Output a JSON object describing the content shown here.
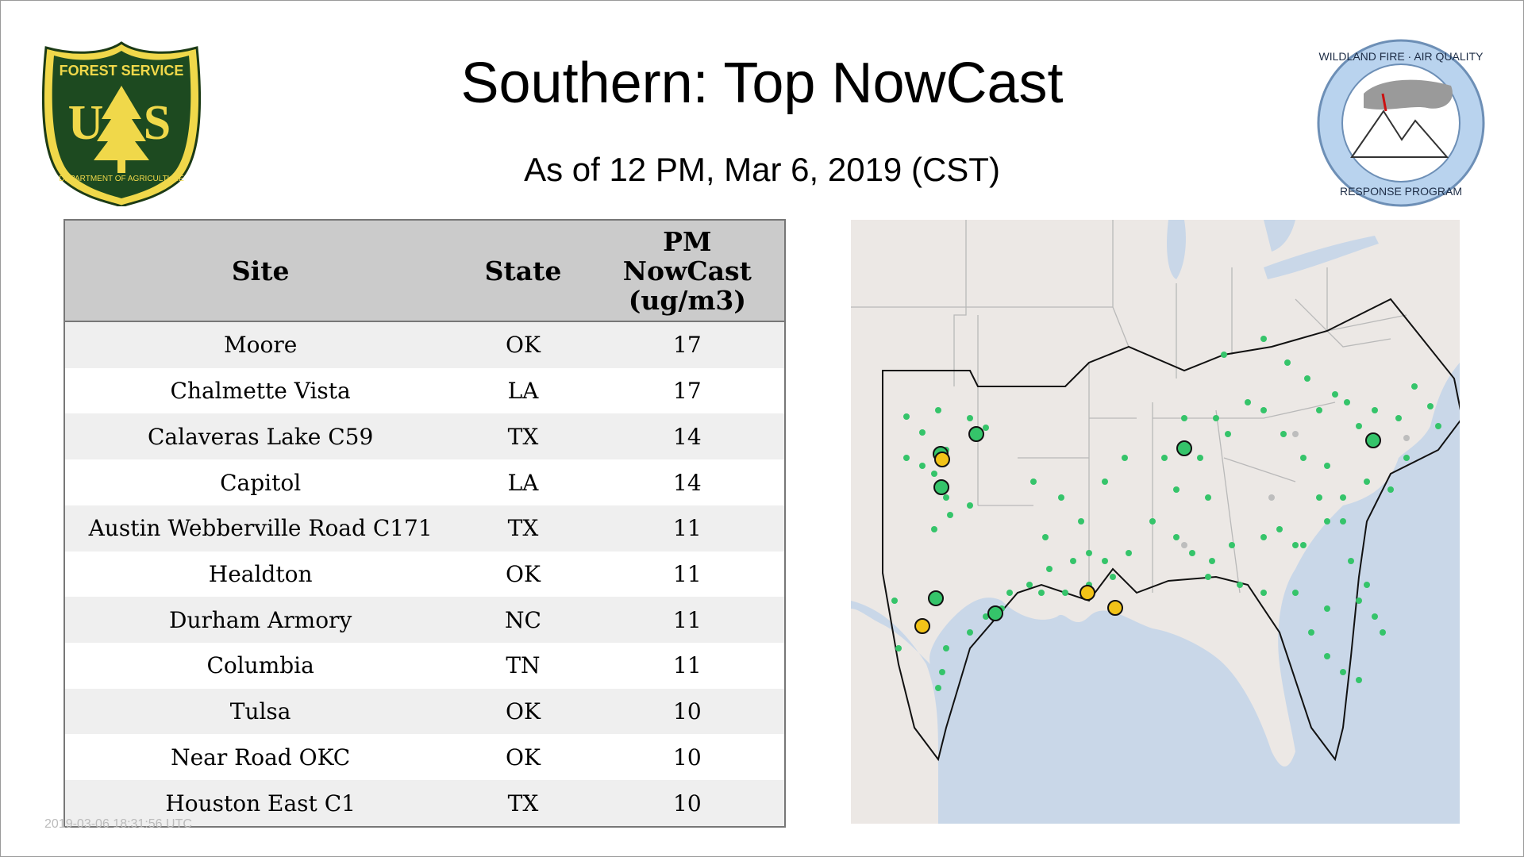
{
  "header": {
    "title": "Southern: Top NowCast",
    "subtitle": "As of 12 PM, Mar  6, 2019 (CST)"
  },
  "logos": {
    "left": {
      "name": "forest-service-shield",
      "text_top": "FOREST SERVICE",
      "text_mid": "U S",
      "text_bottom": "DEPARTMENT OF AGRICULTURE"
    },
    "right": {
      "name": "wildland-fire-air-quality-badge",
      "text_top": "WILDLAND FIRE · AIR QUALITY",
      "text_bottom": "RESPONSE PROGRAM"
    }
  },
  "table": {
    "columns": [
      "Site",
      "State",
      "PM NowCast (ug/m3)"
    ],
    "column_value_lines": [
      "PM",
      "NowCast",
      "(ug/m3)"
    ],
    "rows": [
      {
        "site": "Moore",
        "state": "OK",
        "value": "17"
      },
      {
        "site": "Chalmette Vista",
        "state": "LA",
        "value": "17"
      },
      {
        "site": "Calaveras Lake C59",
        "state": "TX",
        "value": "14"
      },
      {
        "site": "Capitol",
        "state": "LA",
        "value": "14"
      },
      {
        "site": "Austin Webberville Road C171",
        "state": "TX",
        "value": "11"
      },
      {
        "site": "Healdton",
        "state": "OK",
        "value": "11"
      },
      {
        "site": "Durham Armory",
        "state": "NC",
        "value": "11"
      },
      {
        "site": "Columbia",
        "state": "TN",
        "value": "11"
      },
      {
        "site": "Tulsa",
        "state": "OK",
        "value": "10"
      },
      {
        "site": "Near Road OKC",
        "state": "OK",
        "value": "10"
      },
      {
        "site": "Houston East C1",
        "state": "TX",
        "value": "10"
      }
    ]
  },
  "footer": {
    "timestamp": "2019-03-06 18:31:56 UTC"
  },
  "map": {
    "colors": {
      "land": "#ece8e5",
      "water": "#c9d7e8",
      "borders": "#b9b9b9",
      "region_outline": "#111111",
      "monitor_good": "#35c46a",
      "monitor_moderate": "#f2c318",
      "monitor_nodata": "#bdbdbd"
    }
  }
}
